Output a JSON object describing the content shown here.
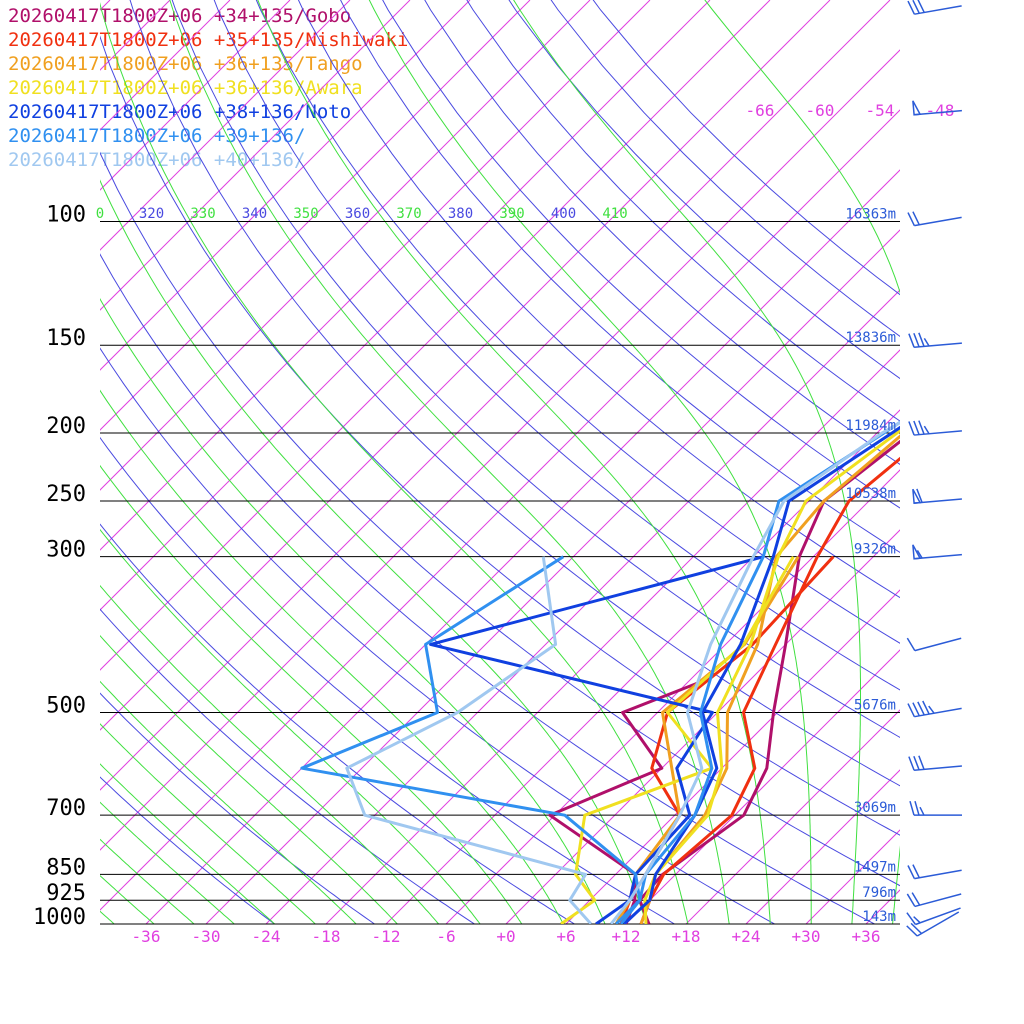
{
  "chart_data": {
    "type": "line",
    "title": "",
    "xlabel": "",
    "ylabel": "",
    "colors": {
      "isotherm": "#e040e0",
      "dry_adiabat": "#4a4ae0",
      "moist_adiabat": "#40e040",
      "isobar": "#000000",
      "height_label": "#2b5bd7"
    },
    "pressure_levels": [
      {
        "p": 100,
        "label": "100",
        "height": "16363m"
      },
      {
        "p": 150,
        "label": "150",
        "height": "13836m"
      },
      {
        "p": 200,
        "label": "200",
        "height": "11984m"
      },
      {
        "p": 250,
        "label": "250",
        "height": "10538m"
      },
      {
        "p": 300,
        "label": "300",
        "height": "9326m"
      },
      {
        "p": 500,
        "label": "500",
        "height": "5676m"
      },
      {
        "p": 700,
        "label": "700",
        "height": "3069m"
      },
      {
        "p": 850,
        "label": "850",
        "height": "1497m"
      },
      {
        "p": 925,
        "label": "925",
        "height": "796m"
      },
      {
        "p": 1000,
        "label": "1000",
        "height": "143m"
      }
    ],
    "temperature_ticks": [
      "-36",
      "-30",
      "-24",
      "-18",
      "-12",
      "-6",
      "+0",
      "+6",
      "+12",
      "+18",
      "+24",
      "+30",
      "+36"
    ],
    "upper_temperature_labels": [
      "-66",
      "-60",
      "-54",
      "-48"
    ],
    "theta_labels": [
      {
        "text": "0",
        "kind": "moist"
      },
      {
        "text": "320",
        "kind": "dry"
      },
      {
        "text": "330",
        "kind": "moist"
      },
      {
        "text": "340",
        "kind": "dry"
      },
      {
        "text": "350",
        "kind": "moist"
      },
      {
        "text": "360",
        "kind": "dry"
      },
      {
        "text": "370",
        "kind": "moist"
      },
      {
        "text": "380",
        "kind": "dry"
      },
      {
        "text": "390",
        "kind": "moist"
      },
      {
        "text": "400",
        "kind": "dry"
      },
      {
        "text": "410",
        "kind": "moist"
      }
    ],
    "series": [
      {
        "name": "20260417T1800Z+06 +34+135/Gobo",
        "color": "#b0106a",
        "temperature": [
          [
            1000,
            14.3
          ],
          [
            925,
            11
          ],
          [
            850,
            10.7
          ],
          [
            700,
            12.9
          ],
          [
            600,
            10.5
          ],
          [
            500,
            5.6
          ],
          [
            400,
            0
          ],
          [
            300,
            -7.4
          ],
          [
            250,
            -10.5
          ],
          [
            200,
            -8.6
          ],
          [
            175,
            -10
          ],
          [
            150,
            -11.5
          ],
          [
            100,
            -11.8
          ],
          [
            70,
            -12.5
          ],
          [
            50,
            -4.8
          ],
          [
            30,
            5
          ]
        ],
        "dewpoint": [
          [
            1000,
            12
          ],
          [
            925,
            10.5
          ],
          [
            850,
            8
          ],
          [
            700,
            -6.5
          ],
          [
            600,
            0
          ],
          [
            500,
            -9.5
          ],
          [
            450,
            -4.5
          ]
        ]
      },
      {
        "name": "20260417T1800Z+06 +35+135/Nishiwaki",
        "color": "#f03010",
        "temperature": [
          [
            1000,
            13.5
          ],
          [
            925,
            12
          ],
          [
            850,
            10.8
          ],
          [
            700,
            11.7
          ],
          [
            600,
            9.3
          ],
          [
            500,
            2.6
          ],
          [
            400,
            -1
          ],
          [
            300,
            -5.6
          ],
          [
            250,
            -8
          ],
          [
            200,
            -6.6
          ],
          [
            175,
            -8
          ],
          [
            150,
            -9.5
          ],
          [
            100,
            -9.5
          ],
          [
            70,
            -7
          ],
          [
            50,
            -3
          ],
          [
            30,
            4
          ]
        ],
        "dewpoint": [
          [
            1000,
            11.5
          ],
          [
            925,
            10
          ],
          [
            850,
            9
          ],
          [
            700,
            6.5
          ],
          [
            600,
            -1
          ],
          [
            500,
            -5
          ],
          [
            400,
            -3.3
          ],
          [
            300,
            -4
          ]
        ]
      },
      {
        "name": "20260417T1800Z+06 +36+135/Tango",
        "color": "#f0a020",
        "temperature": [
          [
            1000,
            13.5
          ],
          [
            925,
            12
          ],
          [
            850,
            10
          ],
          [
            700,
            9
          ],
          [
            600,
            6.5
          ],
          [
            500,
            1
          ],
          [
            400,
            -2.8
          ],
          [
            300,
            -9.7
          ],
          [
            250,
            -10.5
          ],
          [
            200,
            -9.3
          ],
          [
            175,
            -9
          ],
          [
            150,
            -8.8
          ],
          [
            100,
            -6.8
          ],
          [
            70,
            -5.5
          ],
          [
            50,
            -3
          ],
          [
            30,
            4
          ]
        ],
        "dewpoint": [
          [
            1000,
            11
          ],
          [
            925,
            10
          ],
          [
            850,
            8
          ],
          [
            700,
            6.5
          ],
          [
            600,
            1
          ],
          [
            500,
            -5.5
          ],
          [
            400,
            -4.1
          ],
          [
            300,
            -7.5
          ]
        ]
      },
      {
        "name": "20260417T1800Z+06 +36+136/Awara",
        "color": "#f0e020",
        "temperature": [
          [
            1000,
            14
          ],
          [
            925,
            11.5
          ],
          [
            850,
            10
          ],
          [
            700,
            9.3
          ],
          [
            600,
            6
          ],
          [
            500,
            0
          ],
          [
            400,
            -3.5
          ],
          [
            300,
            -9.5
          ],
          [
            250,
            -12.3
          ],
          [
            200,
            -10
          ],
          [
            175,
            -9
          ],
          [
            150,
            -9
          ],
          [
            100,
            -6.8
          ],
          [
            70,
            -5.5
          ],
          [
            50,
            -3.5
          ],
          [
            30,
            4
          ]
        ],
        "dewpoint": [
          [
            1000,
            5.5
          ],
          [
            925,
            6.5
          ],
          [
            850,
            2
          ],
          [
            700,
            -3
          ],
          [
            600,
            5
          ],
          [
            500,
            -5
          ],
          [
            400,
            -4.2
          ],
          [
            300,
            -8
          ]
        ]
      },
      {
        "name": "20260417T1800Z+06 +38+136/Noto",
        "color": "#1040e0",
        "temperature": [
          [
            1000,
            11.8
          ],
          [
            925,
            12
          ],
          [
            850,
            10
          ],
          [
            700,
            8
          ],
          [
            600,
            5.5
          ],
          [
            500,
            -1.5
          ],
          [
            400,
            -4.5
          ],
          [
            300,
            -10
          ],
          [
            250,
            -14
          ],
          [
            200,
            -10.5
          ],
          [
            175,
            -8.6
          ],
          [
            150,
            -7
          ],
          [
            125,
            -6.5
          ],
          [
            100,
            -1.5
          ],
          [
            70,
            4
          ],
          [
            50,
            7
          ],
          [
            30,
            8
          ]
        ],
        "dewpoint": [
          [
            1000,
            9
          ],
          [
            925,
            10
          ],
          [
            850,
            8
          ],
          [
            700,
            7.5
          ],
          [
            600,
            1.5
          ],
          [
            500,
            -0.5
          ],
          [
            400,
            -35.5
          ],
          [
            300,
            -11
          ]
        ]
      },
      {
        "name": "20260417T1800Z+06 +39+136/",
        "color": "#3090f0",
        "temperature": [
          [
            1000,
            11.5
          ],
          [
            925,
            11
          ],
          [
            850,
            9
          ],
          [
            700,
            8
          ],
          [
            600,
            5
          ],
          [
            500,
            -1.7
          ],
          [
            400,
            -6.5
          ],
          [
            300,
            -11
          ],
          [
            250,
            -15
          ],
          [
            200,
            -11.3
          ],
          [
            175,
            -9.3
          ],
          [
            150,
            -6.7
          ],
          [
            125,
            -4.5
          ],
          [
            100,
            -1.5
          ],
          [
            70,
            6
          ],
          [
            50,
            9
          ],
          [
            30,
            9
          ]
        ],
        "dewpoint": [
          [
            1000,
            11
          ],
          [
            925,
            11
          ],
          [
            850,
            8
          ],
          [
            700,
            -5
          ],
          [
            600,
            -36
          ],
          [
            500,
            -28
          ],
          [
            400,
            -36
          ],
          [
            300,
            -31
          ]
        ]
      },
      {
        "name": "20260417T1800Z+06 +40+136/",
        "color": "#a0c8f0",
        "temperature": [
          [
            1000,
            10.5
          ],
          [
            925,
            10
          ],
          [
            850,
            9
          ],
          [
            700,
            6.5
          ],
          [
            600,
            4
          ],
          [
            500,
            -3
          ],
          [
            400,
            -7.5
          ],
          [
            300,
            -12
          ],
          [
            250,
            -14.5
          ],
          [
            200,
            -11.5
          ],
          [
            175,
            -8.5
          ],
          [
            150,
            -5.4
          ],
          [
            125,
            -2.4
          ],
          [
            100,
            1.3
          ],
          [
            70,
            8
          ],
          [
            50,
            11
          ],
          [
            30,
            11
          ]
        ],
        "dewpoint": [
          [
            1000,
            8.5
          ],
          [
            925,
            4
          ],
          [
            850,
            3
          ],
          [
            700,
            -25
          ],
          [
            600,
            -31.5
          ],
          [
            500,
            -26
          ],
          [
            400,
            -23
          ],
          [
            300,
            -33
          ]
        ]
      }
    ],
    "wind_barbs": [
      {
        "p": 1000,
        "dir": 240,
        "speed": 20
      },
      {
        "p": 975,
        "dir": 250,
        "speed": 15
      },
      {
        "p": 925,
        "dir": 255,
        "speed": 20
      },
      {
        "p": 850,
        "dir": 260,
        "speed": 20
      },
      {
        "p": 700,
        "dir": 270,
        "speed": 25
      },
      {
        "p": 600,
        "dir": 265,
        "speed": 30
      },
      {
        "p": 500,
        "dir": 260,
        "speed": 45
      },
      {
        "p": 400,
        "dir": 255,
        "speed": 10
      },
      {
        "p": 300,
        "dir": 265,
        "speed": 55
      },
      {
        "p": 250,
        "dir": 265,
        "speed": 60
      },
      {
        "p": 200,
        "dir": 265,
        "speed": 35
      },
      {
        "p": 150,
        "dir": 265,
        "speed": 35
      },
      {
        "p": 100,
        "dir": 260,
        "speed": 20
      },
      {
        "p": 70,
        "dir": 265,
        "speed": 50
      },
      {
        "p": 50,
        "dir": 260,
        "speed": 30
      }
    ]
  }
}
